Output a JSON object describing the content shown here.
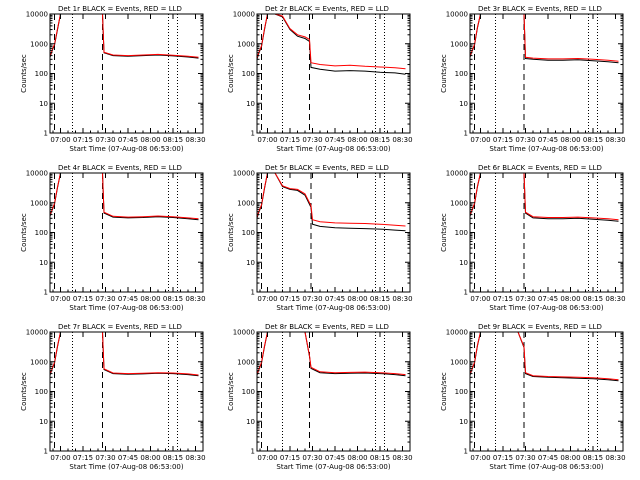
{
  "page": {
    "background": "#ffffff"
  },
  "style": {
    "events_color": "#000000",
    "lld_color": "#ff0000"
  },
  "chart_data": [
    {
      "type": "line",
      "title": "Det 1r BLACK = Events, RED = LLD",
      "xlabel": "Start Time (07-Aug-08 06:53:00)",
      "ylabel": "Counts/sec",
      "yscale": "log",
      "xlim": [
        "06:53",
        "08:35"
      ],
      "ylim": [
        1,
        10000
      ],
      "xticks": [
        "07:00",
        "07:15",
        "07:30",
        "07:45",
        "08:00",
        "08:15",
        "08:30"
      ],
      "yticks": [
        1,
        10,
        100,
        1000,
        10000
      ],
      "vlines_dashed": [
        "06:56",
        "07:28"
      ],
      "vlines_dotted": [
        "07:08",
        "08:12",
        "08:18"
      ],
      "series": [
        {
          "color": "#000000",
          "x": [
            "06:53",
            "06:54",
            "06:55",
            "06:56",
            "06:58",
            "07:00",
            "07:28",
            "07:29",
            "07:35",
            "07:45",
            "07:55",
            "08:05",
            "08:15",
            "08:25",
            "08:32"
          ],
          "y": [
            350,
            500,
            700,
            900,
            3000,
            10000,
            10000,
            500,
            400,
            380,
            400,
            420,
            390,
            360,
            330
          ]
        },
        {
          "color": "#ff0000",
          "x": [
            "06:53",
            "06:54",
            "06:55",
            "06:56",
            "06:58",
            "07:00",
            "07:28",
            "07:29",
            "07:35",
            "07:45",
            "07:55",
            "08:05",
            "08:15",
            "08:25",
            "08:32"
          ],
          "y": [
            380,
            520,
            750,
            950,
            3200,
            10000,
            10000,
            520,
            420,
            400,
            420,
            440,
            410,
            380,
            350
          ]
        }
      ]
    },
    {
      "type": "line",
      "title": "Det 2r BLACK = Events, RED = LLD",
      "xlabel": "Start Time (07-Aug-08 06:53:00)",
      "ylabel": "Counts/sec",
      "yscale": "log",
      "xlim": [
        "06:53",
        "08:35"
      ],
      "ylim": [
        1,
        10000
      ],
      "xticks": [
        "07:00",
        "07:15",
        "07:30",
        "07:45",
        "08:00",
        "08:15",
        "08:30"
      ],
      "yticks": [
        1,
        10,
        100,
        1000,
        10000
      ],
      "vlines_dashed": [
        "06:56",
        "07:28"
      ],
      "vlines_dotted": [
        "07:10",
        "08:12",
        "08:18"
      ],
      "series": [
        {
          "color": "#000000",
          "x": [
            "06:53",
            "06:54",
            "06:56",
            "06:58",
            "07:00",
            "07:05",
            "07:10",
            "07:15",
            "07:20",
            "07:25",
            "07:28",
            "07:29",
            "07:35",
            "07:45",
            "07:55",
            "08:05",
            "08:15",
            "08:25",
            "08:32"
          ],
          "y": [
            300,
            450,
            800,
            3000,
            10000,
            10000,
            8000,
            3000,
            1800,
            1500,
            1200,
            160,
            140,
            120,
            125,
            120,
            110,
            105,
            95
          ]
        },
        {
          "color": "#ff0000",
          "x": [
            "06:53",
            "06:54",
            "06:56",
            "06:58",
            "07:00",
            "07:05",
            "07:10",
            "07:15",
            "07:20",
            "07:25",
            "07:28",
            "07:29",
            "07:35",
            "07:45",
            "07:55",
            "08:05",
            "08:15",
            "08:25",
            "08:32"
          ],
          "y": [
            320,
            480,
            850,
            3200,
            10000,
            10000,
            8500,
            3200,
            2000,
            1700,
            1400,
            230,
            200,
            180,
            190,
            175,
            165,
            155,
            145
          ]
        }
      ]
    },
    {
      "type": "line",
      "title": "Det 3r BLACK = Events, RED = LLD",
      "xlabel": "Start Time (07-Aug-08 06:53:00)",
      "ylabel": "Counts/sec",
      "yscale": "log",
      "xlim": [
        "06:53",
        "08:35"
      ],
      "ylim": [
        1,
        10000
      ],
      "xticks": [
        "07:00",
        "07:15",
        "07:30",
        "07:45",
        "08:00",
        "08:15",
        "08:30"
      ],
      "yticks": [
        1,
        10,
        100,
        1000,
        10000
      ],
      "vlines_dashed": [
        "06:56",
        "07:29"
      ],
      "vlines_dotted": [
        "07:10",
        "08:12",
        "08:18"
      ],
      "series": [
        {
          "color": "#000000",
          "x": [
            "06:53",
            "06:54",
            "06:56",
            "06:58",
            "07:00",
            "07:29",
            "07:30",
            "07:35",
            "07:45",
            "07:55",
            "08:05",
            "08:15",
            "08:25",
            "08:32"
          ],
          "y": [
            350,
            500,
            900,
            3500,
            10000,
            10000,
            320,
            300,
            280,
            280,
            290,
            270,
            250,
            230
          ]
        },
        {
          "color": "#ff0000",
          "x": [
            "06:53",
            "06:54",
            "06:56",
            "06:58",
            "07:00",
            "07:29",
            "07:30",
            "07:35",
            "07:45",
            "07:55",
            "08:05",
            "08:15",
            "08:25",
            "08:32"
          ],
          "y": [
            370,
            520,
            950,
            3700,
            10000,
            10000,
            350,
            330,
            310,
            310,
            320,
            300,
            280,
            260
          ]
        }
      ]
    },
    {
      "type": "line",
      "title": "Det 4r BLACK = Events, RED = LLD",
      "xlabel": "Start Time (07-Aug-08 06:53:00)",
      "ylabel": "Counts/sec",
      "yscale": "log",
      "xlim": [
        "06:53",
        "08:35"
      ],
      "ylim": [
        1,
        10000
      ],
      "xticks": [
        "07:00",
        "07:15",
        "07:30",
        "07:45",
        "08:00",
        "08:15",
        "08:30"
      ],
      "yticks": [
        1,
        10,
        100,
        1000,
        10000
      ],
      "vlines_dashed": [
        "06:56",
        "07:28"
      ],
      "vlines_dotted": [
        "07:08",
        "08:12",
        "08:18"
      ],
      "series": [
        {
          "color": "#000000",
          "x": [
            "06:53",
            "06:54",
            "06:56",
            "06:58",
            "07:00",
            "07:28",
            "07:29",
            "07:35",
            "07:45",
            "07:55",
            "08:05",
            "08:15",
            "08:25",
            "08:32"
          ],
          "y": [
            350,
            500,
            900,
            3200,
            10000,
            10000,
            450,
            330,
            310,
            320,
            340,
            320,
            290,
            270
          ]
        },
        {
          "color": "#ff0000",
          "x": [
            "06:53",
            "06:54",
            "06:56",
            "06:58",
            "07:00",
            "07:28",
            "07:29",
            "07:35",
            "07:45",
            "07:55",
            "08:05",
            "08:15",
            "08:25",
            "08:32"
          ],
          "y": [
            370,
            520,
            950,
            3400,
            10000,
            10000,
            480,
            350,
            330,
            340,
            360,
            340,
            310,
            290
          ]
        }
      ]
    },
    {
      "type": "line",
      "title": "Det 5r BLACK = Events, RED = LLD",
      "xlabel": "Start Time (07-Aug-08 06:53:00)",
      "ylabel": "Counts/sec",
      "yscale": "log",
      "xlim": [
        "06:53",
        "08:35"
      ],
      "ylim": [
        1,
        10000
      ],
      "xticks": [
        "07:00",
        "07:15",
        "07:30",
        "07:45",
        "08:00",
        "08:15",
        "08:30"
      ],
      "yticks": [
        1,
        10,
        100,
        1000,
        10000
      ],
      "vlines_dashed": [
        "06:56",
        "07:29"
      ],
      "vlines_dotted": [
        "07:10",
        "08:12",
        "08:18"
      ],
      "series": [
        {
          "color": "#000000",
          "x": [
            "06:53",
            "06:54",
            "06:56",
            "06:58",
            "07:00",
            "07:05",
            "07:10",
            "07:15",
            "07:20",
            "07:25",
            "07:29",
            "07:30",
            "07:35",
            "07:45",
            "07:55",
            "08:05",
            "08:15",
            "08:25",
            "08:32"
          ],
          "y": [
            300,
            450,
            800,
            3000,
            10000,
            10000,
            3500,
            2800,
            2600,
            1800,
            700,
            190,
            160,
            145,
            140,
            135,
            130,
            120,
            115
          ]
        },
        {
          "color": "#ff0000",
          "x": [
            "06:53",
            "06:54",
            "06:56",
            "06:58",
            "07:00",
            "07:05",
            "07:10",
            "07:15",
            "07:20",
            "07:25",
            "07:29",
            "07:30",
            "07:35",
            "07:45",
            "07:55",
            "08:05",
            "08:15",
            "08:25",
            "08:32"
          ],
          "y": [
            320,
            480,
            850,
            3200,
            10000,
            10000,
            3700,
            3000,
            2800,
            2000,
            800,
            270,
            230,
            210,
            205,
            200,
            190,
            175,
            165
          ]
        }
      ]
    },
    {
      "type": "line",
      "title": "Det 6r BLACK = Events, RED = LLD",
      "xlabel": "Start Time (07-Aug-08 06:53:00)",
      "ylabel": "Counts/sec",
      "yscale": "log",
      "xlim": [
        "06:53",
        "08:35"
      ],
      "ylim": [
        1,
        10000
      ],
      "xticks": [
        "07:00",
        "07:15",
        "07:30",
        "07:45",
        "08:00",
        "08:15",
        "08:30"
      ],
      "yticks": [
        1,
        10,
        100,
        1000,
        10000
      ],
      "vlines_dashed": [
        "06:56",
        "07:29"
      ],
      "vlines_dotted": [
        "07:10",
        "08:12",
        "08:18"
      ],
      "series": [
        {
          "color": "#000000",
          "x": [
            "06:53",
            "06:54",
            "06:56",
            "06:58",
            "07:00",
            "07:29",
            "07:30",
            "07:35",
            "07:45",
            "07:55",
            "08:05",
            "08:15",
            "08:25",
            "08:32"
          ],
          "y": [
            350,
            500,
            900,
            3500,
            10000,
            10000,
            450,
            310,
            290,
            290,
            300,
            280,
            260,
            240
          ]
        },
        {
          "color": "#ff0000",
          "x": [
            "06:53",
            "06:54",
            "06:56",
            "06:58",
            "07:00",
            "07:29",
            "07:30",
            "07:35",
            "07:45",
            "07:55",
            "08:05",
            "08:15",
            "08:25",
            "08:32"
          ],
          "y": [
            370,
            520,
            950,
            3700,
            10000,
            10000,
            480,
            340,
            320,
            320,
            330,
            310,
            290,
            270
          ]
        }
      ]
    },
    {
      "type": "line",
      "title": "Det 7r BLACK = Events, RED = LLD",
      "xlabel": "Start Time (07-Aug-08 06:53:00)",
      "ylabel": "Counts/sec",
      "yscale": "log",
      "xlim": [
        "06:53",
        "08:35"
      ],
      "ylim": [
        1,
        10000
      ],
      "xticks": [
        "07:00",
        "07:15",
        "07:30",
        "07:45",
        "08:00",
        "08:15",
        "08:30"
      ],
      "yticks": [
        1,
        10,
        100,
        1000,
        10000
      ],
      "vlines_dashed": [
        "06:56",
        "07:28"
      ],
      "vlines_dotted": [
        "07:08",
        "08:12",
        "08:18"
      ],
      "series": [
        {
          "color": "#000000",
          "x": [
            "06:53",
            "06:54",
            "06:56",
            "06:58",
            "07:00",
            "07:28",
            "07:29",
            "07:35",
            "07:45",
            "07:55",
            "08:05",
            "08:15",
            "08:25",
            "08:32"
          ],
          "y": [
            350,
            500,
            900,
            3200,
            10000,
            10000,
            550,
            400,
            380,
            390,
            410,
            400,
            370,
            340
          ]
        },
        {
          "color": "#ff0000",
          "x": [
            "06:53",
            "06:54",
            "06:56",
            "06:58",
            "07:00",
            "07:28",
            "07:29",
            "07:35",
            "07:45",
            "07:55",
            "08:05",
            "08:15",
            "08:25",
            "08:32"
          ],
          "y": [
            370,
            520,
            950,
            3400,
            10000,
            10000,
            580,
            420,
            400,
            410,
            430,
            420,
            390,
            360
          ]
        }
      ]
    },
    {
      "type": "line",
      "title": "Det 8r BLACK = Events, RED = LLD",
      "xlabel": "Start Time (07-Aug-08 06:53:00)",
      "ylabel": "Counts/sec",
      "yscale": "log",
      "xlim": [
        "06:53",
        "08:35"
      ],
      "ylim": [
        1,
        10000
      ],
      "xticks": [
        "07:00",
        "07:15",
        "07:30",
        "07:45",
        "08:00",
        "08:15",
        "08:30"
      ],
      "yticks": [
        1,
        10,
        100,
        1000,
        10000
      ],
      "vlines_dashed": [
        "06:56",
        "07:28"
      ],
      "vlines_dotted": [
        "07:10",
        "08:12",
        "08:18"
      ],
      "series": [
        {
          "color": "#000000",
          "x": [
            "06:53",
            "06:54",
            "06:56",
            "06:58",
            "07:00",
            "07:25",
            "07:28",
            "07:29",
            "07:35",
            "07:45",
            "07:55",
            "08:05",
            "08:15",
            "08:25",
            "08:32"
          ],
          "y": [
            350,
            500,
            900,
            3200,
            10000,
            10000,
            1500,
            600,
            430,
            400,
            410,
            420,
            400,
            370,
            340
          ]
        },
        {
          "color": "#ff0000",
          "x": [
            "06:53",
            "06:54",
            "06:56",
            "06:58",
            "07:00",
            "07:25",
            "07:28",
            "07:29",
            "07:35",
            "07:45",
            "07:55",
            "08:05",
            "08:15",
            "08:25",
            "08:32"
          ],
          "y": [
            370,
            520,
            950,
            3400,
            10000,
            10000,
            1600,
            650,
            460,
            430,
            440,
            450,
            430,
            400,
            370
          ]
        }
      ]
    },
    {
      "type": "line",
      "title": "Det 9r BLACK = Events, RED = LLD",
      "xlabel": "Start Time (07-Aug-08 06:53:00)",
      "ylabel": "Counts/sec",
      "yscale": "log",
      "xlim": [
        "06:53",
        "08:35"
      ],
      "ylim": [
        1,
        10000
      ],
      "xticks": [
        "07:00",
        "07:15",
        "07:30",
        "07:45",
        "08:00",
        "08:15",
        "08:30"
      ],
      "yticks": [
        1,
        10,
        100,
        1000,
        10000
      ],
      "vlines_dashed": [
        "06:56",
        "07:29"
      ],
      "vlines_dotted": [
        "07:10",
        "08:12",
        "08:18"
      ],
      "series": [
        {
          "color": "#000000",
          "x": [
            "06:53",
            "06:54",
            "06:56",
            "06:58",
            "07:00",
            "07:25",
            "07:29",
            "07:30",
            "07:35",
            "07:45",
            "07:55",
            "08:05",
            "08:15",
            "08:25",
            "08:32"
          ],
          "y": [
            350,
            500,
            900,
            3500,
            10000,
            10000,
            3000,
            400,
            320,
            300,
            290,
            280,
            270,
            250,
            230
          ]
        },
        {
          "color": "#ff0000",
          "x": [
            "06:53",
            "06:54",
            "06:56",
            "06:58",
            "07:00",
            "07:25",
            "07:29",
            "07:30",
            "07:35",
            "07:45",
            "07:55",
            "08:05",
            "08:15",
            "08:25",
            "08:32"
          ],
          "y": [
            370,
            520,
            950,
            3700,
            10000,
            10000,
            3200,
            430,
            340,
            320,
            310,
            300,
            290,
            270,
            250
          ]
        }
      ]
    }
  ]
}
